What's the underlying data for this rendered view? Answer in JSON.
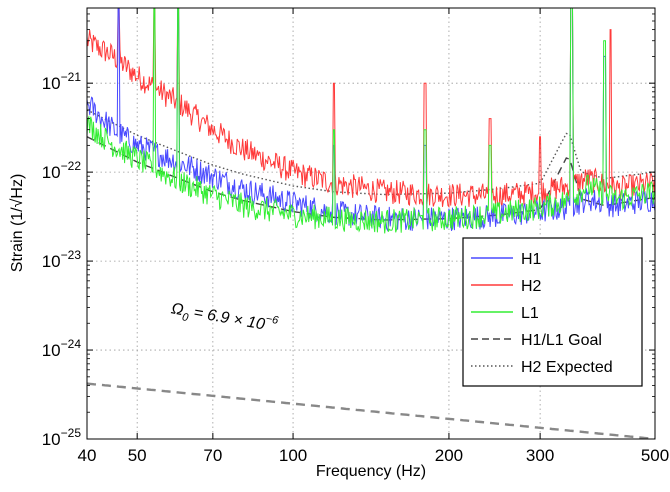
{
  "chart_data": {
    "type": "line",
    "title": "",
    "xlabel": "Frequency (Hz)",
    "ylabel": "Strain (1/√Hz)",
    "x_scale": "log",
    "y_scale": "log",
    "xlim": [
      40,
      500
    ],
    "ylim": [
      1e-25,
      7e-21
    ],
    "x_ticks": [
      40,
      50,
      70,
      100,
      200,
      300,
      500
    ],
    "x_tick_labels": [
      "40",
      "50",
      "70",
      "100",
      "200",
      "300",
      "500"
    ],
    "y_ticks": [
      1e-25,
      1e-24,
      1e-23,
      1e-22,
      1e-21
    ],
    "y_tick_labels": [
      {
        "base": "10",
        "exp": "−25"
      },
      {
        "base": "10",
        "exp": "−24"
      },
      {
        "base": "10",
        "exp": "−23"
      },
      {
        "base": "10",
        "exp": "−22"
      },
      {
        "base": "10",
        "exp": "−21"
      }
    ],
    "grid": "dotted",
    "legend_position": "lower-right",
    "annotation": {
      "omega_symbol": "Ω",
      "omega_sub": "0",
      "text": " = 6.9 × 10",
      "exponent": "−6",
      "x": 58,
      "y": 2.6e-24
    },
    "series": [
      {
        "name": "H1",
        "color": "#4a4aff",
        "style": "solid",
        "x": [
          40,
          45,
          50,
          60,
          70,
          80,
          100,
          120,
          150,
          200,
          250,
          300,
          340,
          370,
          420,
          500
        ],
        "y": [
          6e-22,
          3e-22,
          2e-22,
          1.3e-22,
          9e-23,
          6.5e-23,
          4.5e-23,
          3.5e-23,
          3e-23,
          3e-23,
          3.2e-23,
          3.6e-23,
          4e-23,
          5e-23,
          4.2e-23,
          5e-23
        ],
        "peaks": [
          {
            "x": 46,
            "y": 7e-21
          },
          {
            "x": 60,
            "y": 7e-21
          },
          {
            "x": 120,
            "y": 2e-22
          },
          {
            "x": 180,
            "y": 2e-22
          },
          {
            "x": 345,
            "y": 7e-21
          },
          {
            "x": 400,
            "y": 2e-21
          }
        ]
      },
      {
        "name": "H2",
        "color": "#ff3a3a",
        "style": "solid",
        "x": [
          40,
          45,
          50,
          60,
          70,
          80,
          100,
          120,
          150,
          200,
          250,
          300,
          340,
          370,
          420,
          500
        ],
        "y": [
          3e-21,
          2e-21,
          1.2e-21,
          6e-22,
          3e-22,
          1.8e-22,
          1e-22,
          7.5e-23,
          6e-23,
          5.5e-23,
          5.5e-23,
          6e-23,
          7e-23,
          8.5e-23,
          6.5e-23,
          7.5e-23
        ],
        "peaks": [
          {
            "x": 46,
            "y": 7e-21
          },
          {
            "x": 54,
            "y": 7e-21
          },
          {
            "x": 60,
            "y": 7e-21
          },
          {
            "x": 120,
            "y": 1e-21
          },
          {
            "x": 180,
            "y": 1e-21
          },
          {
            "x": 240,
            "y": 4e-22
          },
          {
            "x": 300,
            "y": 2.5e-22
          },
          {
            "x": 345,
            "y": 7e-21
          },
          {
            "x": 410,
            "y": 4e-21
          }
        ]
      },
      {
        "name": "L1",
        "color": "#33ee33",
        "style": "solid",
        "x": [
          40,
          45,
          50,
          60,
          70,
          80,
          100,
          120,
          150,
          200,
          250,
          300,
          340,
          370,
          420,
          500
        ],
        "y": [
          3.5e-22,
          2e-22,
          1.4e-22,
          8e-23,
          5.5e-23,
          4.2e-23,
          3.3e-23,
          3e-23,
          2.8e-23,
          3e-23,
          3.4e-23,
          4e-23,
          4.8e-23,
          7e-23,
          5e-23,
          6e-23
        ],
        "peaks": [
          {
            "x": 54,
            "y": 7e-21
          },
          {
            "x": 60,
            "y": 7e-21
          },
          {
            "x": 120,
            "y": 3e-22
          },
          {
            "x": 180,
            "y": 3e-22
          },
          {
            "x": 240,
            "y": 2e-22
          },
          {
            "x": 345,
            "y": 7e-21
          },
          {
            "x": 400,
            "y": 3e-21
          }
        ]
      },
      {
        "name": "H1/L1 Goal",
        "color": "#444444",
        "style": "dashed",
        "x": [
          40,
          50,
          60,
          70,
          80,
          100,
          120,
          150,
          200,
          250,
          300,
          340,
          360,
          400,
          500
        ],
        "y": [
          2.5e-22,
          1.3e-22,
          8.5e-23,
          6e-23,
          4.8e-23,
          3.6e-23,
          3.1e-23,
          2.9e-23,
          3e-23,
          3.3e-23,
          3.8e-23,
          1.6e-22,
          5e-23,
          4.2e-23,
          5.2e-23
        ]
      },
      {
        "name": "H2 Expected",
        "color": "#555555",
        "style": "dotted",
        "x": [
          40,
          50,
          60,
          70,
          80,
          100,
          120,
          150,
          200,
          250,
          300,
          340,
          360,
          400,
          500
        ],
        "y": [
          5e-22,
          2.6e-22,
          1.7e-22,
          1.2e-22,
          9.5e-23,
          7e-23,
          6e-23,
          5.6e-23,
          5.8e-23,
          6.5e-23,
          7.5e-23,
          3e-22,
          1e-22,
          8.5e-23,
          1e-22
        ]
      },
      {
        "name": "",
        "color": "#888888",
        "style": "dashed-thick",
        "legend": false,
        "x": [
          40,
          500
        ],
        "y": [
          4.2e-25,
          1e-25
        ]
      }
    ]
  }
}
